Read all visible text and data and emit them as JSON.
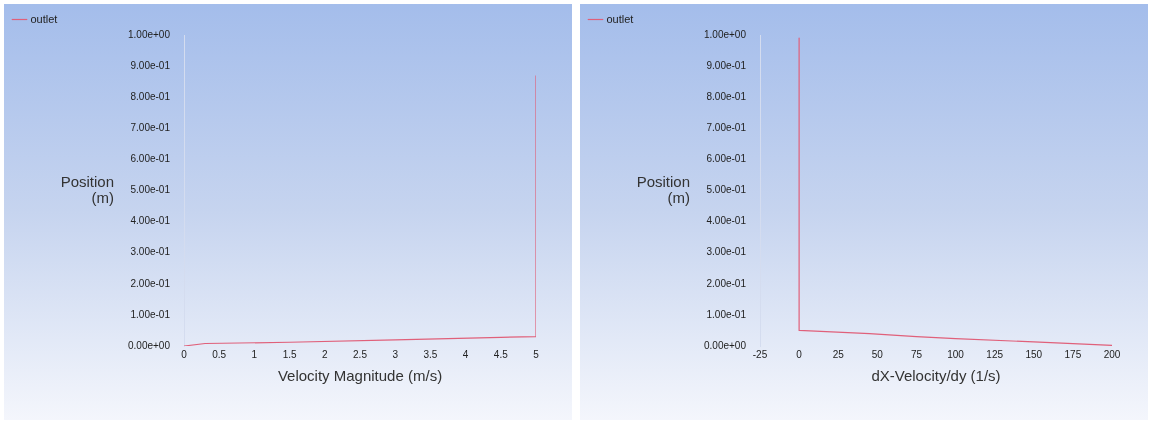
{
  "chart_data": [
    {
      "type": "line",
      "xlabel": "Velocity Magnitude (m/s)",
      "ylabel": "Position (m)",
      "legend": "top left",
      "grid": false,
      "marker": "none",
      "line_style": "solid",
      "xlim": [
        0,
        5
      ],
      "xticks": [
        0,
        0.5,
        1,
        1.5,
        2,
        2.5,
        3,
        3.5,
        4,
        4.5,
        5
      ],
      "ylim": [
        0,
        1
      ],
      "yticks": [
        {
          "value": 0,
          "label": "0.00e+00"
        },
        {
          "value": 0.1,
          "label": "1.00e-01"
        },
        {
          "value": 0.2,
          "label": "2.00e-01"
        },
        {
          "value": 0.3,
          "label": "3.00e-01"
        },
        {
          "value": 0.4,
          "label": "4.00e-01"
        },
        {
          "value": 0.5,
          "label": "5.00e-01"
        },
        {
          "value": 0.6,
          "label": "6.00e-01"
        },
        {
          "value": 0.7,
          "label": "7.00e-01"
        },
        {
          "value": 0.8,
          "label": "8.00e-01"
        },
        {
          "value": 0.9,
          "label": "9.00e-01"
        },
        {
          "value": 1,
          "label": "1.00e+00"
        }
      ],
      "series": [
        {
          "name": "outlet",
          "color": "#e0607a",
          "x": [
            0,
            0.3,
            1.5,
            3,
            4.5,
            5,
            5
          ],
          "values": [
            0,
            0.008,
            0.012,
            0.02,
            0.028,
            0.03,
            0.87
          ]
        }
      ]
    },
    {
      "type": "line",
      "xlabel": "dX-Velocity/dy (1/s)",
      "ylabel": "Position (m)",
      "legend": "top left",
      "grid": false,
      "marker": "none",
      "line_style": "solid",
      "xlim": [
        -25,
        200
      ],
      "xticks": [
        -25,
        0,
        25,
        50,
        75,
        100,
        125,
        150,
        175,
        200
      ],
      "ylim": [
        0,
        1
      ],
      "yticks": [
        {
          "value": 0,
          "label": "0.00e+00"
        },
        {
          "value": 0.1,
          "label": "1.00e-01"
        },
        {
          "value": 0.2,
          "label": "2.00e-01"
        },
        {
          "value": 0.3,
          "label": "3.00e-01"
        },
        {
          "value": 0.4,
          "label": "4.00e-01"
        },
        {
          "value": 0.5,
          "label": "5.00e-01"
        },
        {
          "value": 0.6,
          "label": "6.00e-01"
        },
        {
          "value": 0.7,
          "label": "7.00e-01"
        },
        {
          "value": 0.8,
          "label": "8.00e-01"
        },
        {
          "value": 0.9,
          "label": "9.00e-01"
        },
        {
          "value": 1,
          "label": "1.00e+00"
        }
      ],
      "series": [
        {
          "name": "outlet",
          "color": "#e0607a",
          "x": [
            0,
            0,
            45,
            75,
            100,
            150,
            200
          ],
          "values": [
            0.99,
            0.05,
            0.04,
            0.03,
            0.024,
            0.013,
            0.002
          ]
        }
      ]
    }
  ]
}
